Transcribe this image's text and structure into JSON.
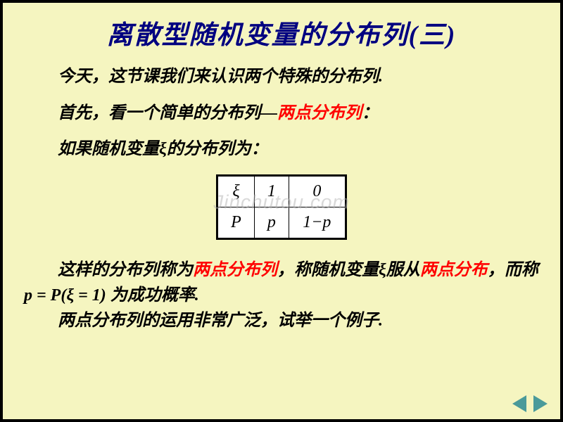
{
  "title": "离散型随机变量的分布列(三)",
  "line1": "今天，这节课我们来认识两个特殊的分布列.",
  "line2_pre": "首先，看一个简单的分布列—",
  "line2_red": "两点分布列",
  "line2_post": "：",
  "line3": "如果随机变量ξ的分布列为：",
  "watermark": "Jinchutou.com",
  "table": {
    "r1c1": "ξ",
    "r1c2": "1",
    "r1c3": "0",
    "r2c1": "P",
    "r2c2": "p",
    "r2c3": "1−p"
  },
  "para_seg1": "这样的分布列称为",
  "para_red1": "两点分布列",
  "para_seg2": "，称随机变量ξ服从",
  "para_red2": "两点分布",
  "para_seg3": "，而称 p = P(ξ = 1) 为成功概率.",
  "para2": "两点分布列的运用非常广泛，试举一个例子.",
  "colors": {
    "background": "#f5f5c0",
    "frame": "#000000",
    "title": "#000080",
    "text": "#000000",
    "highlight": "#ff0000",
    "nav": "#4a9a9a",
    "table_bg": "#ffffff",
    "watermark": "rgba(180,180,180,0.5)"
  },
  "fonts": {
    "title_size": 37,
    "body_size": 24,
    "table_size": 24
  }
}
